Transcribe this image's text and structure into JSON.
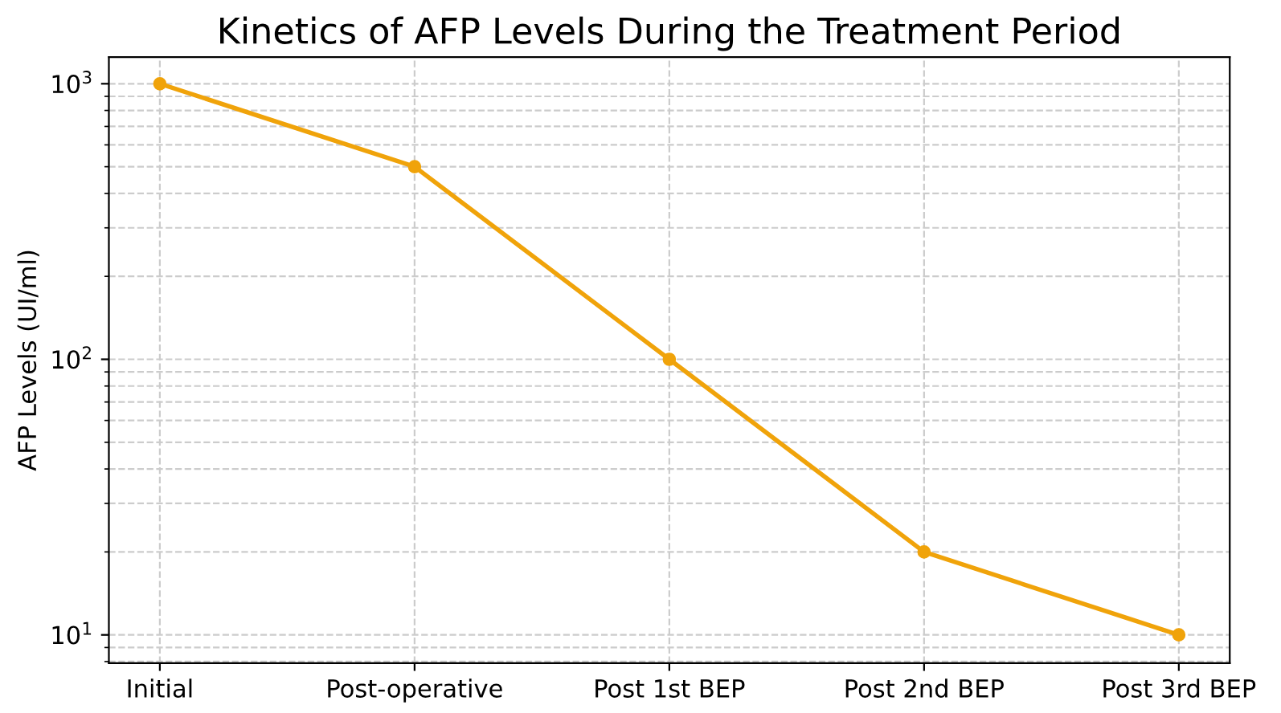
{
  "chart_data": {
    "type": "line",
    "title": "Kinetics of AFP Levels During the Treatment Period",
    "ylabel": "AFP Levels (UI/ml)",
    "categories": [
      "Initial",
      "Post-operative",
      "Post 1st BEP",
      "Post 2nd BEP",
      "Post 3rd BEP"
    ],
    "series": [
      {
        "color": "#f0a30a",
        "values": [
          1000,
          500,
          100,
          20,
          10
        ]
      }
    ],
    "log": "y",
    "ylim": [
      7.9,
      1250
    ],
    "yticks": [
      {
        "value": 10,
        "label": "10$^{1}$"
      },
      {
        "value": 100,
        "label": "10$^{2}$"
      },
      {
        "value": 1000,
        "label": "10$^{3}$"
      }
    ],
    "grid": true,
    "marker": "circle",
    "line_style": "solid"
  }
}
